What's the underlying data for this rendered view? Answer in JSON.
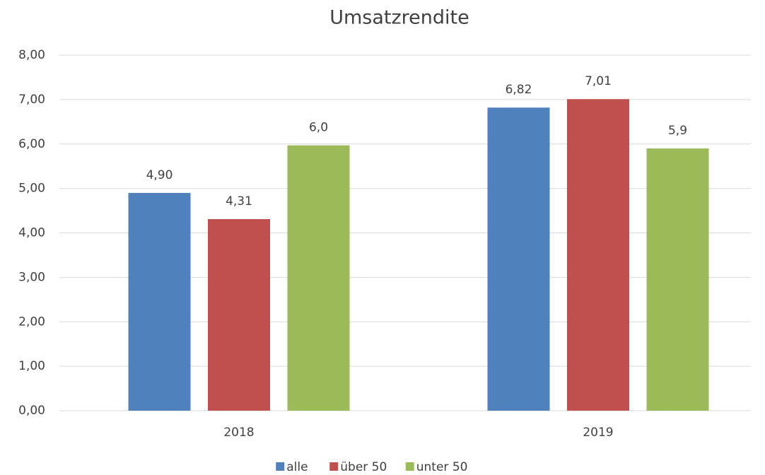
{
  "chart_data": {
    "type": "bar",
    "title": "Umsatzrendite",
    "categories": [
      "2018",
      "2019"
    ],
    "series": [
      {
        "name": "alle",
        "color": "#4f81bd",
        "values": [
          4.9,
          6.82
        ],
        "value_labels": [
          "4,90",
          "6,82"
        ]
      },
      {
        "name": "über 50",
        "color": "#c0504d",
        "values": [
          4.31,
          7.01
        ],
        "value_labels": [
          "4,31",
          "7,01"
        ]
      },
      {
        "name": "unter 50",
        "color": "#9bbb59",
        "values": [
          5.97,
          5.9
        ],
        "value_labels": [
          "6,0",
          "5,9"
        ]
      }
    ],
    "ylim": [
      0,
      8
    ],
    "yticks": [
      {
        "value": 0,
        "label": "0,00"
      },
      {
        "value": 1,
        "label": "1,00"
      },
      {
        "value": 2,
        "label": "2,00"
      },
      {
        "value": 3,
        "label": "3,00"
      },
      {
        "value": 4,
        "label": "4,00"
      },
      {
        "value": 5,
        "label": "5,00"
      },
      {
        "value": 6,
        "label": "6,00"
      },
      {
        "value": 7,
        "label": "7,00"
      },
      {
        "value": 8,
        "label": "8,00"
      }
    ],
    "grid": true,
    "legend": "bottom"
  }
}
